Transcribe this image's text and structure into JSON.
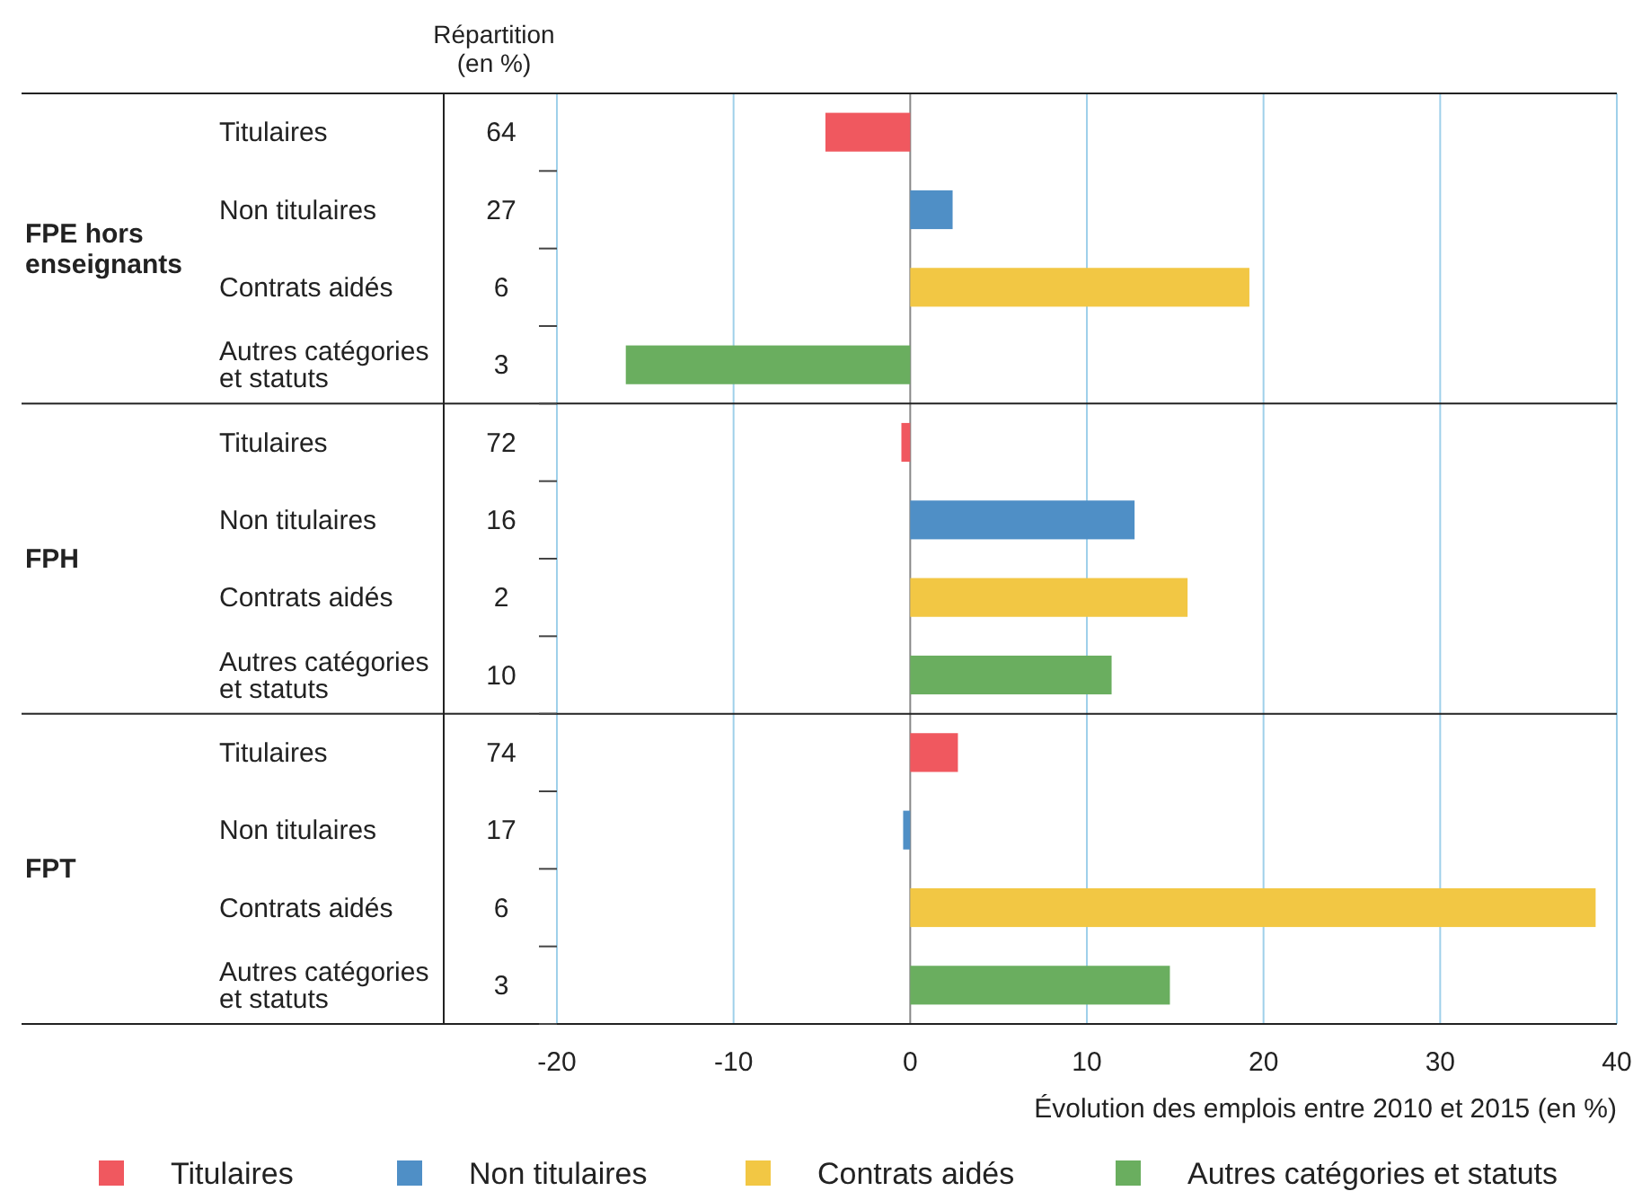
{
  "chart_data": {
    "type": "bar",
    "orientation": "horizontal",
    "xlabel": "Évolution des emplois entre 2010 et 2015 (en %)",
    "categories": [
      "Titulaires",
      "Non titulaires",
      "Contrats aidés",
      "Autres catégories et statuts",
      "Titulaires",
      "Non titulaires",
      "Contrats aidés",
      "Autres catégories et statuts",
      "Titulaires",
      "Non titulaires",
      "Contrats aidés",
      "Autres catégories et statuts"
    ],
    "series": [
      {
        "name": "Titulaires",
        "color": "#f0585f",
        "values": [
          -4.8,
          null,
          null,
          null,
          -0.5,
          null,
          null,
          null,
          2.7,
          null,
          null,
          null
        ]
      },
      {
        "name": "Non titulaires",
        "color": "#4f8fc6",
        "values": [
          null,
          2.4,
          null,
          null,
          null,
          12.7,
          null,
          null,
          null,
          -0.4,
          null,
          null
        ]
      },
      {
        "name": "Contrats aidés",
        "color": "#f2c744",
        "values": [
          null,
          null,
          19.2,
          null,
          null,
          null,
          15.7,
          null,
          null,
          null,
          38.8,
          null
        ]
      },
      {
        "name": "Autres catégories et statuts",
        "color": "#6aae5f",
        "values": [
          null,
          null,
          null,
          -16.1,
          null,
          null,
          null,
          11.4,
          null,
          null,
          null,
          14.7
        ]
      }
    ],
    "xlim": [
      -20,
      40
    ],
    "xticks": [
      -20,
      -10,
      0,
      10,
      20,
      30,
      40
    ],
    "grid": "x",
    "legend": "bottom",
    "annotations": [
      "Répartition (en %)",
      "FPE hors enseignants",
      "FPH",
      "FPT",
      "64",
      "27",
      "6",
      "3",
      "72",
      "16",
      "2",
      "10",
      "74",
      "17",
      "6",
      "3"
    ]
  }
}
